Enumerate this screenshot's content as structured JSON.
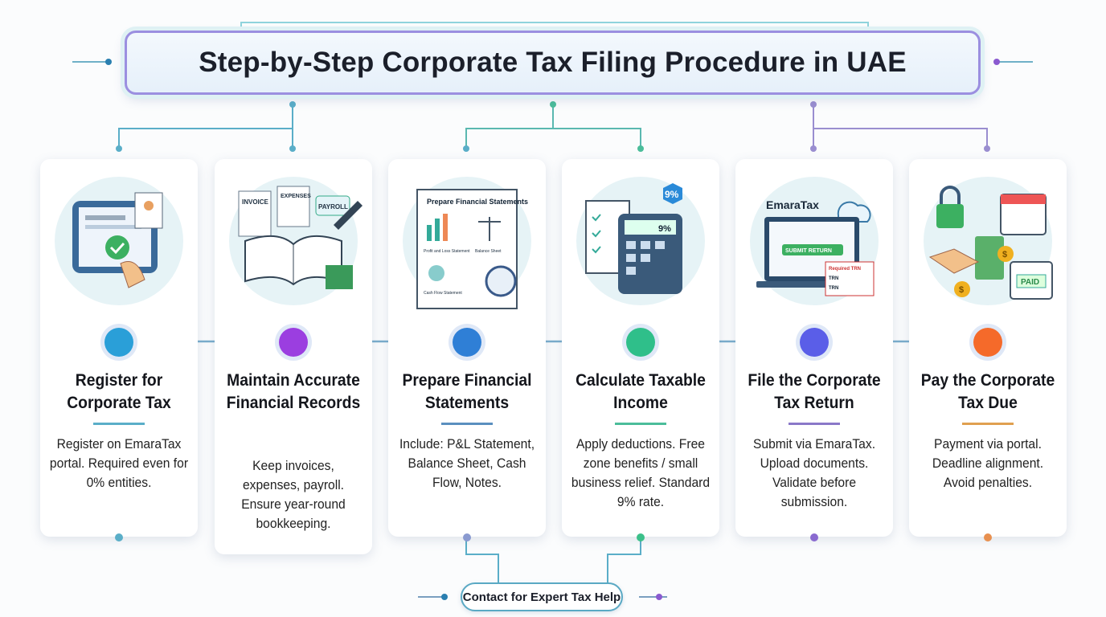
{
  "title": "Step-by-Step Corporate Tax Filing Procedure in UAE",
  "steps": [
    {
      "title": "Register for Corporate Tax",
      "desc": "Register on EmaraTax portal. Required even for 0% entities.",
      "color": "#2a9fd8",
      "accent": "#5aaec8",
      "icon": "tablet-registration-icon"
    },
    {
      "title": "Maintain Accurate Financial Records",
      "desc": "Keep invoices, expenses, payroll. Ensure year-round bookkeeping.",
      "color": "#9b3ee0",
      "accent": "#9b6ad0",
      "icon": "ledger-book-icon",
      "labels": [
        "INVOICE",
        "EXPENSES",
        "PAYROLL"
      ]
    },
    {
      "title": "Prepare Financial Statements",
      "desc": "Include: P&L Statement, Balance Sheet, Cash Flow, Notes.",
      "color": "#2f7fd6",
      "accent": "#5a8fbf",
      "icon": "financial-statements-icon",
      "labels": [
        "Prepare Financial Statements",
        "Profit and Loss Statement",
        "Balance Sheet",
        "Cash Flow Statement"
      ]
    },
    {
      "title": "Calculate Taxable Income",
      "desc": "Apply deductions. Free zone benefits / small business relief. Standard 9% rate.",
      "color": "#2fbf8a",
      "accent": "#4bbd9a",
      "icon": "calculator-icon",
      "labels": [
        "9%",
        "9%"
      ]
    },
    {
      "title": "File the Corporate Tax Return",
      "desc": "Submit via EmaraTax. Upload documents. Validate before submission.",
      "color": "#5a5ee8",
      "accent": "#8a78c8",
      "icon": "laptop-submit-icon",
      "labels": [
        "EmaraTax",
        "SUBMIT RETURN",
        "Required TRN",
        "TRN",
        "TRN"
      ]
    },
    {
      "title": "Pay the Corporate Tax Due",
      "desc": "Payment via portal. Deadline alignment. Avoid penalties.",
      "color": "#f56a2a",
      "accent": "#e0a050",
      "icon": "payment-calendar-icon",
      "labels": [
        "PAID",
        "$",
        "$"
      ]
    }
  ],
  "cta": "Contact for Expert Tax Help"
}
